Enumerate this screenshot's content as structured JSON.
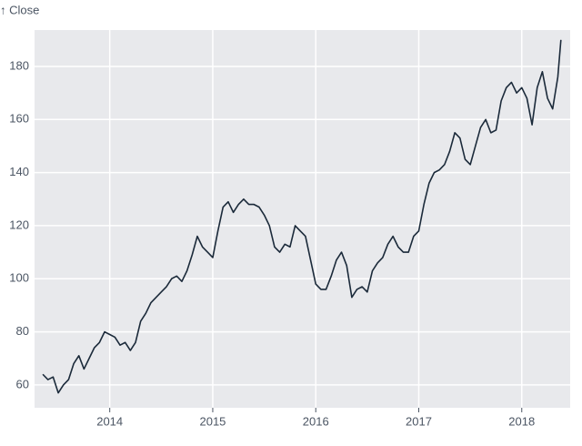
{
  "chart_data": {
    "type": "line",
    "y_label": "↑ Close",
    "color": "#1b2a3a",
    "grid": true,
    "x": [
      2013.35,
      2013.4,
      2013.45,
      2013.5,
      2013.55,
      2013.6,
      2013.65,
      2013.7,
      2013.75,
      2013.8,
      2013.85,
      2013.9,
      2013.95,
      2014.0,
      2014.05,
      2014.1,
      2014.15,
      2014.2,
      2014.25,
      2014.3,
      2014.35,
      2014.4,
      2014.45,
      2014.5,
      2014.55,
      2014.6,
      2014.65,
      2014.7,
      2014.75,
      2014.8,
      2014.85,
      2014.9,
      2014.95,
      2015.0,
      2015.05,
      2015.1,
      2015.15,
      2015.2,
      2015.25,
      2015.3,
      2015.35,
      2015.4,
      2015.45,
      2015.5,
      2015.55,
      2015.6,
      2015.65,
      2015.7,
      2015.75,
      2015.8,
      2015.85,
      2015.9,
      2015.95,
      2016.0,
      2016.05,
      2016.1,
      2016.15,
      2016.2,
      2016.25,
      2016.3,
      2016.35,
      2016.4,
      2016.45,
      2016.5,
      2016.55,
      2016.6,
      2016.65,
      2016.7,
      2016.75,
      2016.8,
      2016.85,
      2016.9,
      2016.95,
      2017.0,
      2017.05,
      2017.1,
      2017.15,
      2017.2,
      2017.25,
      2017.3,
      2017.35,
      2017.4,
      2017.45,
      2017.5,
      2017.55,
      2017.6,
      2017.65,
      2017.7,
      2017.75,
      2017.8,
      2017.85,
      2017.9,
      2017.95,
      2018.0,
      2018.05,
      2018.1,
      2018.15,
      2018.2,
      2018.25,
      2018.3,
      2018.35,
      2018.38
    ],
    "values": [
      64,
      62,
      63,
      57,
      60,
      62,
      68,
      71,
      66,
      70,
      74,
      76,
      80,
      79,
      78,
      75,
      76,
      73,
      76,
      84,
      87,
      91,
      93,
      95,
      97,
      100,
      101,
      99,
      103,
      109,
      116,
      112,
      110,
      108,
      118,
      127,
      129,
      125,
      128,
      130,
      128,
      128,
      127,
      124,
      120,
      112,
      110,
      113,
      112,
      120,
      118,
      116,
      107,
      98,
      96,
      96,
      101,
      107,
      110,
      105,
      93,
      96,
      97,
      95,
      103,
      106,
      108,
      113,
      116,
      112,
      110,
      110,
      116,
      118,
      128,
      136,
      140,
      141,
      143,
      148,
      155,
      153,
      145,
      143,
      150,
      157,
      160,
      155,
      156,
      167,
      172,
      174,
      170,
      172,
      168,
      158,
      172,
      178,
      168,
      164,
      176,
      190
    ],
    "xlim": [
      2013.27,
      2018.47
    ],
    "xticks": [
      2014,
      2015,
      2016,
      2017,
      2018
    ],
    "ylim": [
      51.4,
      193.7
    ],
    "yticks": [
      60,
      80,
      100,
      120,
      140,
      160,
      180
    ]
  }
}
